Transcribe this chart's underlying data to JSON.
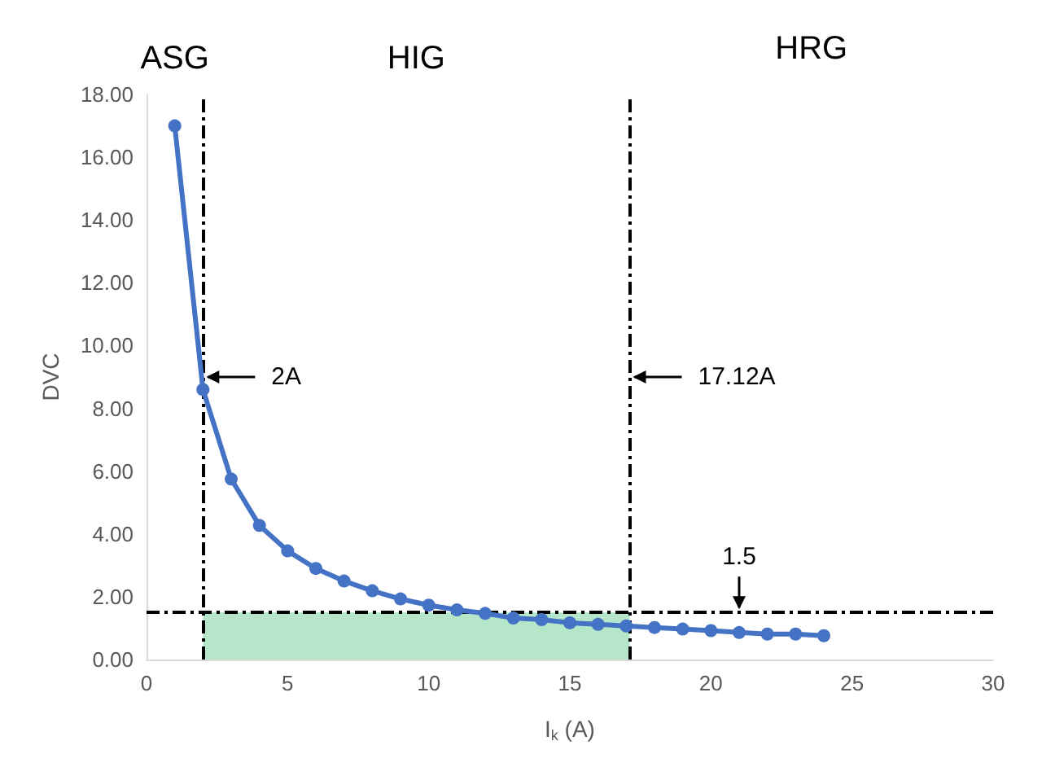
{
  "chart_data": {
    "type": "line",
    "xlabel": "I$_{k}$ (A)",
    "ylabel": "DVC",
    "x": [
      1,
      2,
      3,
      4,
      5,
      6,
      7,
      8,
      9,
      10,
      11,
      12,
      13,
      14,
      15,
      16,
      17,
      18,
      19,
      20,
      21,
      22,
      23,
      24
    ],
    "series": [
      {
        "color": "#4472c4",
        "values": [
          17.0,
          8.6,
          5.75,
          4.27,
          3.46,
          2.9,
          2.5,
          2.19,
          1.93,
          1.73,
          1.58,
          1.47,
          1.32,
          1.27,
          1.17,
          1.12,
          1.07,
          1.02,
          0.97,
          0.92,
          0.86,
          0.81,
          0.81,
          0.76
        ]
      }
    ],
    "xlim": [
      0,
      30
    ],
    "xticks": [
      0,
      5,
      10,
      15,
      20,
      25,
      30
    ],
    "ylim": [
      0,
      18
    ],
    "yticks": [
      {
        "value": 0,
        "label": "0.00"
      },
      {
        "value": 2,
        "label": "2.00"
      },
      {
        "value": 4,
        "label": "4.00"
      },
      {
        "value": 6,
        "label": "6.00"
      },
      {
        "value": 8,
        "label": "8.00"
      },
      {
        "value": 10,
        "label": "10.00"
      },
      {
        "value": 12,
        "label": "12.00"
      },
      {
        "value": 14,
        "label": "14.00"
      },
      {
        "value": 16,
        "label": "16.00"
      },
      {
        "value": 18,
        "label": "18.00"
      }
    ],
    "ref_lines": [
      {
        "axis": "x",
        "value": 2,
        "label": "2A",
        "line_style": "dashed",
        "color": "#000000"
      },
      {
        "axis": "x",
        "value": 17.12,
        "label": "17.12A",
        "line_style": "dashed",
        "color": "#000000"
      },
      {
        "axis": "y",
        "value": 1.5,
        "label": "1.5",
        "line_style": "dashed",
        "color": "#000000"
      }
    ],
    "bands": [
      {
        "axis": "x",
        "from": 2,
        "to": 17.12,
        "color": "#b5e6c9"
      }
    ],
    "annotations": [
      "ASG",
      "HIG",
      "HRG"
    ],
    "marker": "circle",
    "line_style": "solid",
    "grid": false
  }
}
